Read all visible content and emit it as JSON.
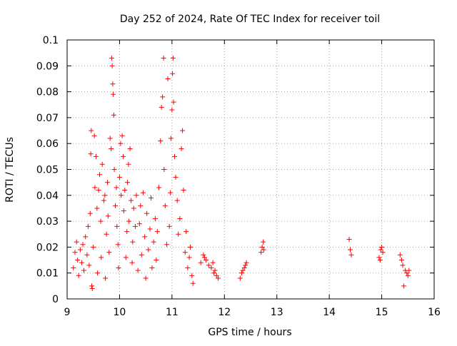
{
  "chart_data": {
    "type": "scatter",
    "title": "Day 252 of 2024, Rate Of TEC Index for receiver toil",
    "xlabel": "GPS time / hours",
    "ylabel": "ROTI / TECUs",
    "xlim": [
      9,
      16
    ],
    "ylim": [
      0,
      0.1
    ],
    "grid": true,
    "marker": "+",
    "color": "#ff0000",
    "x_ticks": [
      "9",
      "10",
      "11",
      "12",
      "13",
      "14",
      "15",
      "16"
    ],
    "y_ticks": [
      "0",
      "0.01",
      "0.02",
      "0.03",
      "0.04",
      "0.05",
      "0.06",
      "0.07",
      "0.08",
      "0.09",
      "0.1"
    ],
    "series": [
      {
        "name": "ROTI",
        "points": [
          [
            9.12,
            0.012
          ],
          [
            9.15,
            0.018
          ],
          [
            9.18,
            0.022
          ],
          [
            9.2,
            0.015
          ],
          [
            9.22,
            0.009
          ],
          [
            9.25,
            0.019
          ],
          [
            9.28,
            0.014
          ],
          [
            9.3,
            0.021
          ],
          [
            9.32,
            0.011
          ],
          [
            9.35,
            0.024
          ],
          [
            9.38,
            0.017
          ],
          [
            9.4,
            0.028
          ],
          [
            9.42,
            0.013
          ],
          [
            9.44,
            0.033
          ],
          [
            9.45,
            0.056
          ],
          [
            9.46,
            0.065
          ],
          [
            9.47,
            0.005
          ],
          [
            9.48,
            0.004
          ],
          [
            9.5,
            0.02
          ],
          [
            9.52,
            0.063
          ],
          [
            9.53,
            0.043
          ],
          [
            9.55,
            0.055
          ],
          [
            9.57,
            0.035
          ],
          [
            9.58,
            0.01
          ],
          [
            9.6,
            0.042
          ],
          [
            9.62,
            0.048
          ],
          [
            9.64,
            0.03
          ],
          [
            9.65,
            0.016
          ],
          [
            9.67,
            0.052
          ],
          [
            9.7,
            0.038
          ],
          [
            9.72,
            0.04
          ],
          [
            9.73,
            0.008
          ],
          [
            9.75,
            0.025
          ],
          [
            9.77,
            0.045
          ],
          [
            9.78,
            0.032
          ],
          [
            9.8,
            0.018
          ],
          [
            9.82,
            0.062
          ],
          [
            9.84,
            0.058
          ],
          [
            9.85,
            0.093
          ],
          [
            9.86,
            0.09
          ],
          [
            9.87,
            0.083
          ],
          [
            9.88,
            0.079
          ],
          [
            9.89,
            0.071
          ],
          [
            9.9,
            0.05
          ],
          [
            9.92,
            0.036
          ],
          [
            9.94,
            0.043
          ],
          [
            9.95,
            0.028
          ],
          [
            9.97,
            0.021
          ],
          [
            9.98,
            0.012
          ],
          [
            10.0,
            0.047
          ],
          [
            10.02,
            0.06
          ],
          [
            10.03,
            0.04
          ],
          [
            10.05,
            0.063
          ],
          [
            10.07,
            0.055
          ],
          [
            10.08,
            0.034
          ],
          [
            10.1,
            0.042
          ],
          [
            10.12,
            0.016
          ],
          [
            10.14,
            0.026
          ],
          [
            10.15,
            0.045
          ],
          [
            10.17,
            0.052
          ],
          [
            10.18,
            0.03
          ],
          [
            10.2,
            0.058
          ],
          [
            10.22,
            0.038
          ],
          [
            10.24,
            0.014
          ],
          [
            10.25,
            0.022
          ],
          [
            10.27,
            0.035
          ],
          [
            10.3,
            0.028
          ],
          [
            10.32,
            0.04
          ],
          [
            10.35,
            0.011
          ],
          [
            10.38,
            0.029
          ],
          [
            10.4,
            0.036
          ],
          [
            10.42,
            0.017
          ],
          [
            10.45,
            0.041
          ],
          [
            10.48,
            0.024
          ],
          [
            10.5,
            0.008
          ],
          [
            10.52,
            0.033
          ],
          [
            10.55,
            0.019
          ],
          [
            10.58,
            0.027
          ],
          [
            10.6,
            0.039
          ],
          [
            10.62,
            0.012
          ],
          [
            10.65,
            0.022
          ],
          [
            10.68,
            0.031
          ],
          [
            10.7,
            0.015
          ],
          [
            10.72,
            0.026
          ],
          [
            10.75,
            0.043
          ],
          [
            10.78,
            0.061
          ],
          [
            10.8,
            0.074
          ],
          [
            10.82,
            0.078
          ],
          [
            10.84,
            0.093
          ],
          [
            10.85,
            0.05
          ],
          [
            10.87,
            0.036
          ],
          [
            10.9,
            0.021
          ],
          [
            10.92,
            0.085
          ],
          [
            10.95,
            0.028
          ],
          [
            10.97,
            0.041
          ],
          [
            10.98,
            0.062
          ],
          [
            11.0,
            0.073
          ],
          [
            11.01,
            0.087
          ],
          [
            11.02,
            0.093
          ],
          [
            11.03,
            0.076
          ],
          [
            11.05,
            0.055
          ],
          [
            11.07,
            0.047
          ],
          [
            11.1,
            0.038
          ],
          [
            11.12,
            0.025
          ],
          [
            11.15,
            0.031
          ],
          [
            11.18,
            0.058
          ],
          [
            11.2,
            0.065
          ],
          [
            11.22,
            0.042
          ],
          [
            11.25,
            0.018
          ],
          [
            11.27,
            0.026
          ],
          [
            11.3,
            0.012
          ],
          [
            11.33,
            0.016
          ],
          [
            11.35,
            0.02
          ],
          [
            11.38,
            0.009
          ],
          [
            11.4,
            0.006
          ],
          [
            11.55,
            0.014
          ],
          [
            11.6,
            0.017
          ],
          [
            11.62,
            0.016
          ],
          [
            11.65,
            0.015
          ],
          [
            11.7,
            0.013
          ],
          [
            11.75,
            0.012
          ],
          [
            11.78,
            0.014
          ],
          [
            11.8,
            0.01
          ],
          [
            11.82,
            0.011
          ],
          [
            11.85,
            0.009
          ],
          [
            11.88,
            0.008
          ],
          [
            12.3,
            0.008
          ],
          [
            12.33,
            0.01
          ],
          [
            12.35,
            0.011
          ],
          [
            12.38,
            0.012
          ],
          [
            12.4,
            0.013
          ],
          [
            12.42,
            0.014
          ],
          [
            12.7,
            0.018
          ],
          [
            12.72,
            0.02
          ],
          [
            12.74,
            0.022
          ],
          [
            12.75,
            0.019
          ],
          [
            14.38,
            0.023
          ],
          [
            14.4,
            0.019
          ],
          [
            14.42,
            0.017
          ],
          [
            14.95,
            0.016
          ],
          [
            14.97,
            0.015
          ],
          [
            14.98,
            0.019
          ],
          [
            15.0,
            0.02
          ],
          [
            15.02,
            0.018
          ],
          [
            15.35,
            0.017
          ],
          [
            15.38,
            0.015
          ],
          [
            15.4,
            0.013
          ],
          [
            15.42,
            0.005
          ],
          [
            15.45,
            0.011
          ],
          [
            15.48,
            0.01
          ],
          [
            15.5,
            0.009
          ],
          [
            15.52,
            0.011
          ]
        ]
      }
    ]
  }
}
